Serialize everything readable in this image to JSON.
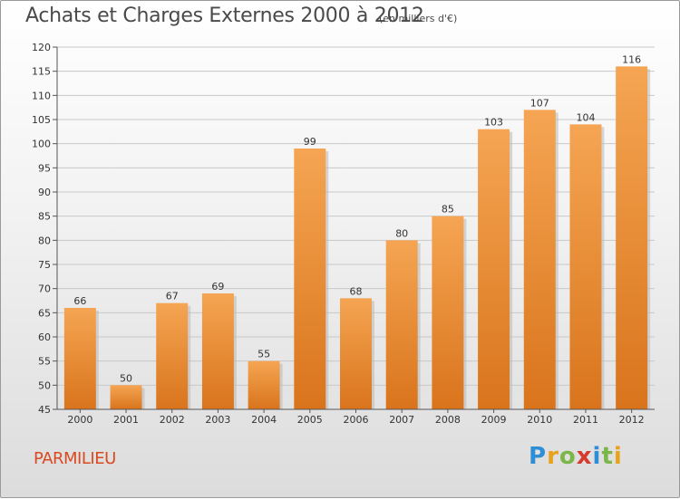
{
  "header": {
    "title": "Achats et Charges Externes 2000 à 2012",
    "subtitle": "(en milliers d'€)"
  },
  "footer": {
    "place": "PARMILIEU",
    "logo_letters": [
      "P",
      "r",
      "o",
      "x",
      "i",
      "t",
      "i"
    ],
    "logo_colors": [
      "#2f8fd6",
      "#e9a21b",
      "#7ab648",
      "#d63a2f",
      "#2f8fd6",
      "#7ab648",
      "#e9a21b"
    ]
  },
  "colors": {
    "bar_top": "#f5a553",
    "bar_bottom": "#d9741c",
    "grid": "#c8c8c8",
    "axis": "#555555"
  },
  "chart_data": {
    "type": "bar",
    "title": "Achats et Charges Externes 2000 à 2012",
    "subtitle": "(en milliers d'€)",
    "categories": [
      "2000",
      "2001",
      "2002",
      "2003",
      "2004",
      "2005",
      "2006",
      "2007",
      "2008",
      "2009",
      "2010",
      "2011",
      "2012"
    ],
    "values": [
      66,
      50,
      67,
      69,
      55,
      99,
      68,
      80,
      85,
      103,
      107,
      104,
      116
    ],
    "ylim": [
      45,
      120
    ],
    "yticks": [
      45,
      50,
      55,
      60,
      65,
      70,
      75,
      80,
      85,
      90,
      95,
      100,
      105,
      110,
      115,
      120
    ],
    "grid": true
  }
}
